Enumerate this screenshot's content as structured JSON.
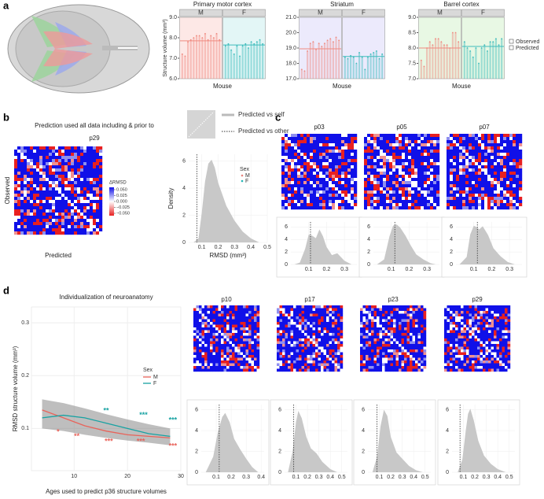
{
  "panel_labels": {
    "a": "a",
    "b": "b",
    "c": "c",
    "d": "d"
  },
  "panel_a": {
    "ylabel": "Structure volume (mm³)",
    "xlabel": "Mouse",
    "legend": [
      "Observed",
      "Predicted"
    ],
    "charts": [
      {
        "type": "bar",
        "title": "Primary motor cortex",
        "ylim": [
          6,
          9
        ],
        "yticks": [
          {
            "value": 6,
            "label": "6.0"
          },
          {
            "value": 7,
            "label": "7.0"
          },
          {
            "value": 8,
            "label": "8.0"
          },
          {
            "value": 9,
            "label": "9.0"
          }
        ],
        "facets": [
          {
            "name": "M",
            "color": "#f08a80",
            "bg": "#fde8e6",
            "values": [
              7.2,
              7.1,
              7.8,
              7.9,
              8.0,
              8.1,
              8.1,
              8.0,
              8.2,
              7.9,
              8.1,
              8.0,
              8.2,
              7.9
            ],
            "mean": 7.85
          },
          {
            "name": "F",
            "color": "#3fbcbc",
            "bg": "#e3f6f6",
            "values": [
              7.6,
              7.7,
              7.4,
              7.2,
              7.6,
              7.1,
              7.6,
              7.7,
              7.5,
              7.8,
              7.7,
              7.8,
              7.9,
              7.7
            ],
            "mean": 7.65
          }
        ]
      },
      {
        "type": "bar",
        "title": "Striatum",
        "ylim": [
          17,
          21
        ],
        "yticks": [
          {
            "value": 17,
            "label": "17.0"
          },
          {
            "value": 18,
            "label": "18.0"
          },
          {
            "value": 19,
            "label": "19.0"
          },
          {
            "value": 20,
            "label": "20.0"
          },
          {
            "value": 21,
            "label": "21.0"
          }
        ],
        "facets": [
          {
            "name": "M",
            "color": "#f08a80",
            "bg": "#eceafc",
            "values": [
              17.6,
              17.5,
              18.8,
              19.3,
              19.4,
              18.9,
              19.3,
              19.1,
              19.3,
              19.5,
              19.6,
              19.4,
              19.7,
              19.5
            ],
            "mean": 18.95
          },
          {
            "name": "F",
            "color": "#3fbcbc",
            "bg": "#eceafc",
            "values": [
              18.4,
              18.3,
              18.5,
              18.4,
              18.0,
              18.7,
              18.4,
              17.6,
              18.4,
              18.6,
              18.7,
              18.8,
              18.3,
              18.6
            ],
            "mean": 18.45
          }
        ]
      },
      {
        "type": "bar",
        "title": "Barrel cortex",
        "ylim": [
          7,
          9
        ],
        "yticks": [
          {
            "value": 7,
            "label": "7.0"
          },
          {
            "value": 7.5,
            "label": "7.5"
          },
          {
            "value": 8,
            "label": "8.0"
          },
          {
            "value": 8.5,
            "label": "8.5"
          },
          {
            "value": 9,
            "label": "9.0"
          }
        ],
        "facets": [
          {
            "name": "M",
            "color": "#f08a80",
            "bg": "#e8f8e4",
            "values": [
              7.6,
              7.4,
              8.0,
              8.2,
              8.1,
              8.3,
              8.3,
              8.2,
              8.1,
              8.1,
              8.0,
              8.5,
              8.5,
              8.2
            ],
            "mean": 8.0
          },
          {
            "name": "F",
            "color": "#3fbcbc",
            "bg": "#e8f8e4",
            "values": [
              8.2,
              8.0,
              7.9,
              7.7,
              8.0,
              7.5,
              8.0,
              8.1,
              7.9,
              8.2,
              8.2,
              8.3,
              8.1,
              8.3
            ],
            "mean": 8.05
          }
        ]
      }
    ]
  },
  "panel_b": {
    "title": "Prediction used all data including & prior to",
    "age": "p29",
    "heatmap": {
      "ylabel": "Observed",
      "xlabel": "Predicted",
      "colorbar_title": "ΔRMSD",
      "colorbar_lim": [
        -0.06,
        0.06
      ],
      "colorbar_ticks": [
        {
          "value": 0.05,
          "label": "0.050"
        },
        {
          "value": 0.025,
          "label": "0.025"
        },
        {
          "value": 0,
          "label": "0.000"
        },
        {
          "value": -0.025,
          "label": "−0.025"
        },
        {
          "value": -0.05,
          "label": "−0.050"
        }
      ]
    },
    "density": {
      "type": "area",
      "ylabel": "Density",
      "xlabel": "RMSD (mm³)",
      "xlim": [
        0.02,
        0.5
      ],
      "xticks": [
        0.1,
        0.2,
        0.3,
        0.4,
        0.5
      ],
      "ylim": [
        0,
        6.5
      ],
      "yticks": [
        0,
        2,
        4,
        6
      ],
      "x": [
        0.05,
        0.08,
        0.1,
        0.12,
        0.14,
        0.16,
        0.18,
        0.2,
        0.25,
        0.3,
        0.35,
        0.4,
        0.45
      ],
      "y": [
        0,
        0.3,
        2.2,
        4.5,
        5.8,
        6.1,
        5.5,
        4.4,
        2.7,
        1.6,
        0.8,
        0.3,
        0
      ],
      "vline": 0.07,
      "legend": [
        "Predicted vs self",
        "Predicted vs other"
      ],
      "sex_legend": {
        "title": "Sex",
        "entries": [
          {
            "name": "M",
            "color": "#e8837c"
          },
          {
            "name": "F",
            "color": "#22b5b5"
          }
        ]
      }
    }
  },
  "panel_c": {
    "plots": [
      {
        "age": "p03",
        "xlim": [
          0,
          0.37
        ],
        "xticks": [
          0.1,
          0.2,
          0.3
        ],
        "ylim": [
          0,
          6.8
        ],
        "yticks": [
          0,
          2,
          4,
          6
        ],
        "x": [
          0.02,
          0.05,
          0.08,
          0.1,
          0.12,
          0.14,
          0.16,
          0.18,
          0.2,
          0.23,
          0.26,
          0.3,
          0.34
        ],
        "y": [
          0,
          0.3,
          2.5,
          4.8,
          4.6,
          4.2,
          5.6,
          4.5,
          2.8,
          1.5,
          1.8,
          0.6,
          0
        ],
        "vline": 0.11
      },
      {
        "age": "p05",
        "xlim": [
          0,
          0.37
        ],
        "xticks": [
          0.1,
          0.2,
          0.3
        ],
        "ylim": [
          0,
          6.8
        ],
        "yticks": [
          0,
          2,
          4,
          6
        ],
        "x": [
          0.02,
          0.06,
          0.09,
          0.11,
          0.13,
          0.15,
          0.18,
          0.21,
          0.24,
          0.28,
          0.32,
          0.35
        ],
        "y": [
          0,
          0.8,
          4.5,
          6.2,
          6.4,
          5.9,
          4.6,
          3.0,
          1.6,
          0.8,
          0.2,
          0
        ],
        "vline": 0.12
      },
      {
        "age": "p07",
        "xlim": [
          0,
          0.37
        ],
        "xticks": [
          0.1,
          0.2,
          0.3
        ],
        "ylim": [
          0,
          6.8
        ],
        "yticks": [
          0,
          2,
          4,
          6
        ],
        "x": [
          0.02,
          0.06,
          0.08,
          0.1,
          0.12,
          0.13,
          0.15,
          0.18,
          0.21,
          0.25,
          0.29,
          0.33
        ],
        "y": [
          0,
          1.2,
          4.8,
          6.2,
          5.9,
          5.6,
          6.1,
          4.7,
          2.6,
          1.3,
          0.4,
          0
        ],
        "vline": 0.12
      }
    ]
  },
  "panel_d": {
    "chart": {
      "type": "line",
      "title": "Individualization of neuroanatomy",
      "ylabel": "RMSD structure volume (mm³)",
      "xlabel": "Ages used to predict p36 structure volumes",
      "xlim": [
        2,
        30
      ],
      "xticks": [
        10,
        20,
        30
      ],
      "ylim": [
        0.02,
        0.33
      ],
      "yticks": [
        0.1,
        0.2,
        0.3
      ],
      "x": [
        4,
        8,
        12,
        16,
        20,
        24,
        28
      ],
      "band": {
        "lower": [
          0.1,
          0.095,
          0.088,
          0.082,
          0.077,
          0.073,
          0.068
        ],
        "upper": [
          0.155,
          0.148,
          0.138,
          0.127,
          0.117,
          0.108,
          0.1
        ]
      },
      "legend_title": "Sex",
      "series": [
        {
          "name": "M",
          "color": "#e8635a",
          "values": [
            0.135,
            0.12,
            0.105,
            0.095,
            0.088,
            0.085,
            0.082
          ]
        },
        {
          "name": "F",
          "color": "#17a2a2",
          "values": [
            0.12,
            0.125,
            0.12,
            0.11,
            0.1,
            0.09,
            0.085
          ]
        }
      ],
      "annotations": [
        {
          "text": "*",
          "x": 7,
          "y": 0.093,
          "color": "#e8635a"
        },
        {
          "text": "**",
          "x": 10.5,
          "y": 0.085,
          "color": "#e8635a"
        },
        {
          "text": "**",
          "x": 16,
          "y": 0.133,
          "color": "#17a2a2"
        },
        {
          "text": "***",
          "x": 16.5,
          "y": 0.075,
          "color": "#e8635a"
        },
        {
          "text": "***",
          "x": 23,
          "y": 0.125,
          "color": "#17a2a2"
        },
        {
          "text": "***",
          "x": 22.5,
          "y": 0.075,
          "color": "#e8635a"
        },
        {
          "text": "***",
          "x": 28.5,
          "y": 0.115,
          "color": "#17a2a2"
        },
        {
          "text": "***",
          "x": 28.5,
          "y": 0.066,
          "color": "#e8635a"
        }
      ]
    },
    "plots": [
      {
        "age": "p10",
        "xlim": [
          0,
          0.42
        ],
        "xticks": [
          0.1,
          0.2,
          0.3,
          0.4
        ],
        "ylim": [
          0,
          6.5
        ],
        "yticks": [
          0,
          2,
          4,
          6
        ],
        "x": [
          0.03,
          0.08,
          0.11,
          0.14,
          0.16,
          0.19,
          0.22,
          0.26,
          0.3,
          0.34,
          0.38
        ],
        "y": [
          0,
          1.5,
          3.8,
          5.3,
          5.7,
          4.8,
          3.2,
          2.2,
          1.3,
          0.5,
          0
        ],
        "vline": 0.12
      },
      {
        "age": "p17",
        "xlim": [
          0,
          0.55
        ],
        "xticks": [
          0.1,
          0.2,
          0.3,
          0.4,
          0.5
        ],
        "ylim": [
          0,
          6.5
        ],
        "yticks": [
          0,
          2,
          4,
          6
        ],
        "x": [
          0.03,
          0.07,
          0.1,
          0.12,
          0.15,
          0.19,
          0.23,
          0.28,
          0.33,
          0.4,
          0.46
        ],
        "y": [
          0,
          2.0,
          4.8,
          5.9,
          5.2,
          3.4,
          2.3,
          1.8,
          1.0,
          0.3,
          0
        ],
        "vline": 0.08
      },
      {
        "age": "p23",
        "xlim": [
          0,
          0.55
        ],
        "xticks": [
          0.1,
          0.2,
          0.3,
          0.4,
          0.5
        ],
        "ylim": [
          0,
          6.5
        ],
        "yticks": [
          0,
          2,
          4,
          6
        ],
        "x": [
          0.04,
          0.08,
          0.11,
          0.14,
          0.17,
          0.2,
          0.25,
          0.3,
          0.36,
          0.42,
          0.48
        ],
        "y": [
          0,
          1.5,
          4.4,
          6.0,
          5.4,
          3.4,
          1.9,
          1.3,
          0.6,
          0.2,
          0
        ],
        "vline": 0.08
      },
      {
        "age": "p29",
        "xlim": [
          0,
          0.55
        ],
        "xticks": [
          0.1,
          0.2,
          0.3,
          0.4,
          0.5
        ],
        "ylim": [
          0,
          6.5
        ],
        "yticks": [
          0,
          2,
          4,
          6
        ],
        "x": [
          0.05,
          0.09,
          0.12,
          0.14,
          0.16,
          0.19,
          0.23,
          0.28,
          0.34,
          0.4,
          0.47
        ],
        "y": [
          0,
          1.2,
          4.0,
          5.6,
          6.1,
          5.0,
          3.0,
          1.6,
          0.8,
          0.3,
          0
        ],
        "vline": 0.07
      }
    ]
  }
}
